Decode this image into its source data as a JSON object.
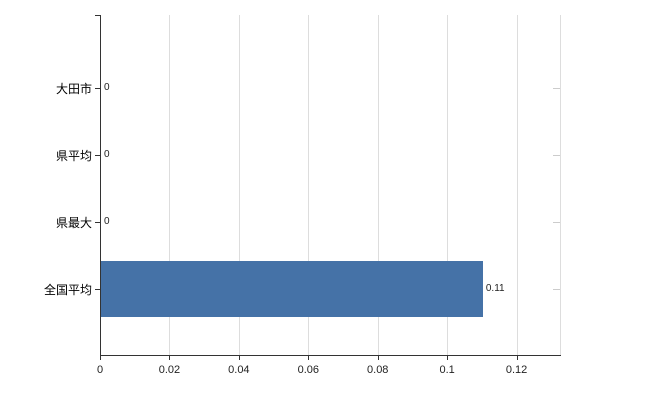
{
  "chart_data": {
    "type": "bar",
    "orientation": "horizontal",
    "title": "",
    "xlabel": "",
    "ylabel": "",
    "categories": [
      "大田市",
      "県平均",
      "県最大",
      "全国平均"
    ],
    "values": [
      0,
      0,
      0,
      0.11
    ],
    "value_labels": [
      "0",
      "0",
      "0",
      "0.11"
    ],
    "x_ticks": [
      0,
      0.02,
      0.04,
      0.06,
      0.08,
      0.1,
      0.12
    ],
    "x_tick_labels": [
      "0",
      "0.02",
      "0.04",
      "0.06",
      "0.08",
      "0.1",
      "0.12"
    ],
    "xlim": [
      0,
      0.1325
    ],
    "grid": true,
    "legend_position": "none",
    "colors": {
      "bar": "#4572A7",
      "axis": "#333333",
      "grid": "#dddddd",
      "right_tick": "#cccccc",
      "text": "#000000",
      "background": "#ffffff"
    }
  }
}
